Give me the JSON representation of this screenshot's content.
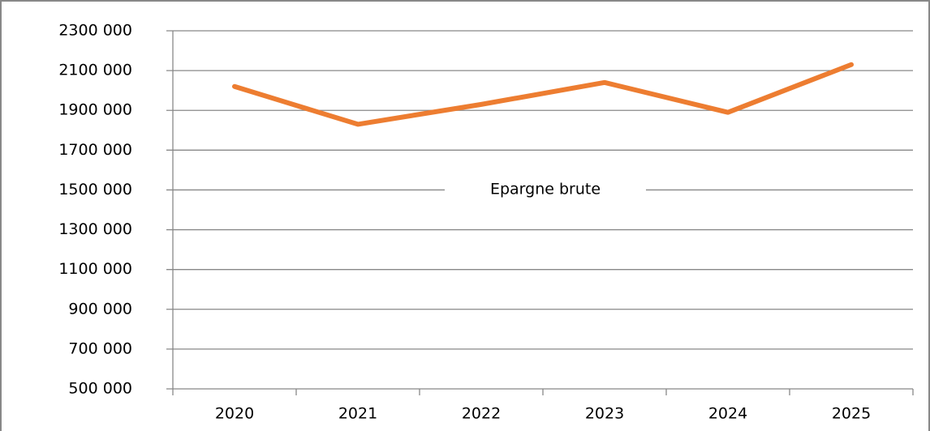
{
  "chart_data": {
    "type": "line",
    "categories": [
      "2020",
      "2021",
      "2022",
      "2023",
      "2024",
      "2025"
    ],
    "series": [
      {
        "name": "Epargne brute",
        "color": "#ed7d31",
        "values": [
          2020000,
          1830000,
          1930000,
          2040000,
          1890000,
          2130000
        ]
      }
    ],
    "ylim": [
      500000,
      2300000
    ],
    "yticks": [
      {
        "value": 500000,
        "label": "500 000"
      },
      {
        "value": 700000,
        "label": "700 000"
      },
      {
        "value": 900000,
        "label": "900 000"
      },
      {
        "value": 1100000,
        "label": "1100 000"
      },
      {
        "value": 1300000,
        "label": "1300 000"
      },
      {
        "value": 1500000,
        "label": "1500 000"
      },
      {
        "value": 1700000,
        "label": "1700 000"
      },
      {
        "value": 1900000,
        "label": "1900 000"
      },
      {
        "value": 2100000,
        "label": "2100 000"
      },
      {
        "value": 2300000,
        "label": "2300 000"
      }
    ],
    "grid": true
  }
}
